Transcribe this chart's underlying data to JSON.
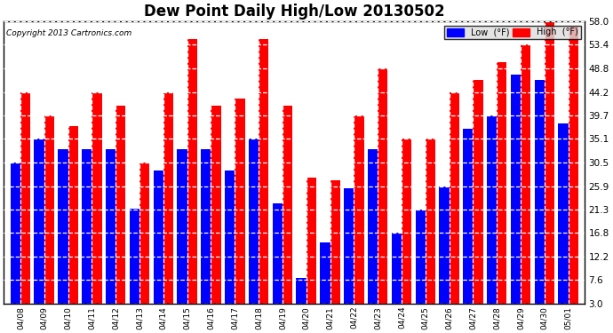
{
  "title": "Dew Point Daily High/Low 20130502",
  "copyright": "Copyright 2013 Cartronics.com",
  "dates": [
    "04/08",
    "04/09",
    "04/10",
    "04/11",
    "04/12",
    "04/13",
    "04/14",
    "04/15",
    "04/16",
    "04/17",
    "04/18",
    "04/19",
    "04/20",
    "04/21",
    "04/22",
    "04/23",
    "04/24",
    "04/25",
    "04/26",
    "04/27",
    "04/28",
    "04/29",
    "04/30",
    "05/01"
  ],
  "high": [
    44.2,
    39.7,
    37.5,
    44.2,
    41.5,
    30.5,
    44.2,
    54.5,
    41.5,
    43.0,
    54.5,
    41.5,
    27.5,
    27.0,
    39.7,
    48.8,
    35.1,
    35.1,
    44.2,
    46.5,
    50.0,
    53.4,
    58.0,
    57.0
  ],
  "low": [
    30.5,
    35.1,
    33.0,
    33.0,
    33.0,
    21.5,
    29.0,
    33.0,
    33.0,
    29.0,
    35.1,
    22.5,
    8.0,
    15.0,
    25.5,
    33.0,
    16.8,
    21.3,
    25.9,
    37.0,
    39.7,
    47.5,
    46.5,
    38.0
  ],
  "ylim_min": 3.0,
  "ylim_max": 58.0,
  "yticks": [
    3.0,
    7.6,
    12.2,
    16.8,
    21.3,
    25.9,
    30.5,
    35.1,
    39.7,
    44.2,
    48.8,
    53.4,
    58.0
  ],
  "high_color": "#FF0000",
  "low_color": "#0000FF",
  "bg_color": "#FFFFFF",
  "grid_color": "#888888",
  "title_fontsize": 12,
  "bar_width": 0.42
}
